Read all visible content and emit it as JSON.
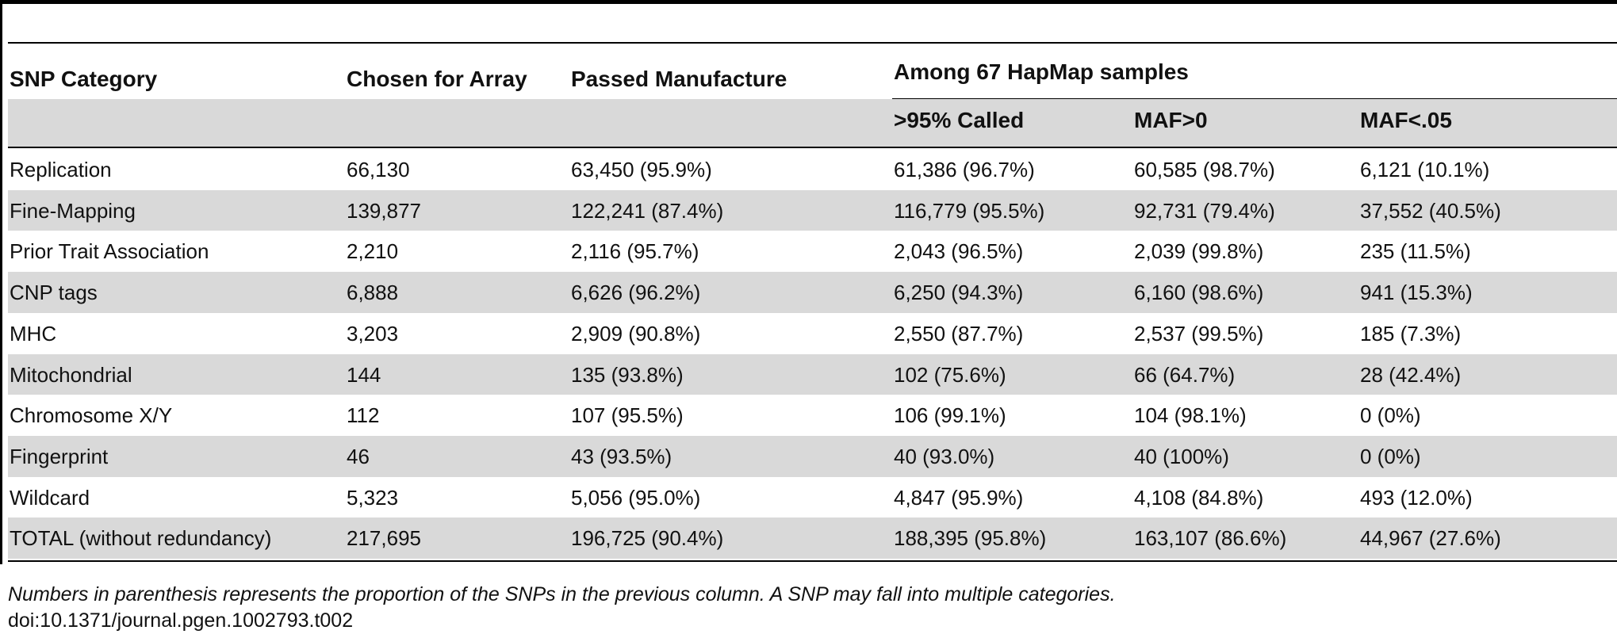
{
  "table": {
    "headers": {
      "category": "SNP Category",
      "chosen": "Chosen for Array",
      "passed": "Passed Manufacture",
      "group": "Among 67 HapMap samples",
      "called": ">95% Called",
      "maf0": "MAF>0",
      "maf05": "MAF<.05"
    },
    "rows": [
      {
        "category": "Replication",
        "chosen": "66,130",
        "passed": "63,450 (95.9%)",
        "called": "61,386 (96.7%)",
        "maf0": "60,585 (98.7%)",
        "maf05": "6,121 (10.1%)"
      },
      {
        "category": "Fine-Mapping",
        "chosen": "139,877",
        "passed": "122,241 (87.4%)",
        "called": "116,779 (95.5%)",
        "maf0": "92,731 (79.4%)",
        "maf05": "37,552 (40.5%)"
      },
      {
        "category": "Prior Trait Association",
        "chosen": "2,210",
        "passed": "2,116 (95.7%)",
        "called": "2,043 (96.5%)",
        "maf0": "2,039 (99.8%)",
        "maf05": "235 (11.5%)"
      },
      {
        "category": "CNP tags",
        "chosen": "6,888",
        "passed": "6,626 (96.2%)",
        "called": "6,250 (94.3%)",
        "maf0": "6,160 (98.6%)",
        "maf05": "941 (15.3%)"
      },
      {
        "category": "MHC",
        "chosen": "3,203",
        "passed": "2,909 (90.8%)",
        "called": "2,550 (87.7%)",
        "maf0": "2,537 (99.5%)",
        "maf05": "185 (7.3%)"
      },
      {
        "category": "Mitochondrial",
        "chosen": "144",
        "passed": "135 (93.8%)",
        "called": "102 (75.6%)",
        "maf0": "66 (64.7%)",
        "maf05": "28 (42.4%)"
      },
      {
        "category": "Chromosome X/Y",
        "chosen": "112",
        "passed": "107 (95.5%)",
        "called": "106 (99.1%)",
        "maf0": "104 (98.1%)",
        "maf05": "0 (0%)"
      },
      {
        "category": "Fingerprint",
        "chosen": "46",
        "passed": "43 (93.5%)",
        "called": "40 (93.0%)",
        "maf0": "40 (100%)",
        "maf05": "0 (0%)"
      },
      {
        "category": "Wildcard",
        "chosen": "5,323",
        "passed": "5,056 (95.0%)",
        "called": "4,847 (95.9%)",
        "maf0": "4,108 (84.8%)",
        "maf05": "493 (12.0%)"
      },
      {
        "category": "TOTAL (without redundancy)",
        "chosen": "217,695",
        "passed": "196,725 (90.4%)",
        "called": "188,395 (95.8%)",
        "maf0": "163,107 (86.6%)",
        "maf05": "44,967 (27.6%)"
      }
    ]
  },
  "footnote": "Numbers in parenthesis represents the proportion of the SNPs in the previous column. A SNP may fall into multiple categories.",
  "doi": "doi:10.1371/journal.pgen.1002793.t002",
  "colors": {
    "shade": "#d9d9d9",
    "rule": "#000000",
    "text": "#111111"
  }
}
